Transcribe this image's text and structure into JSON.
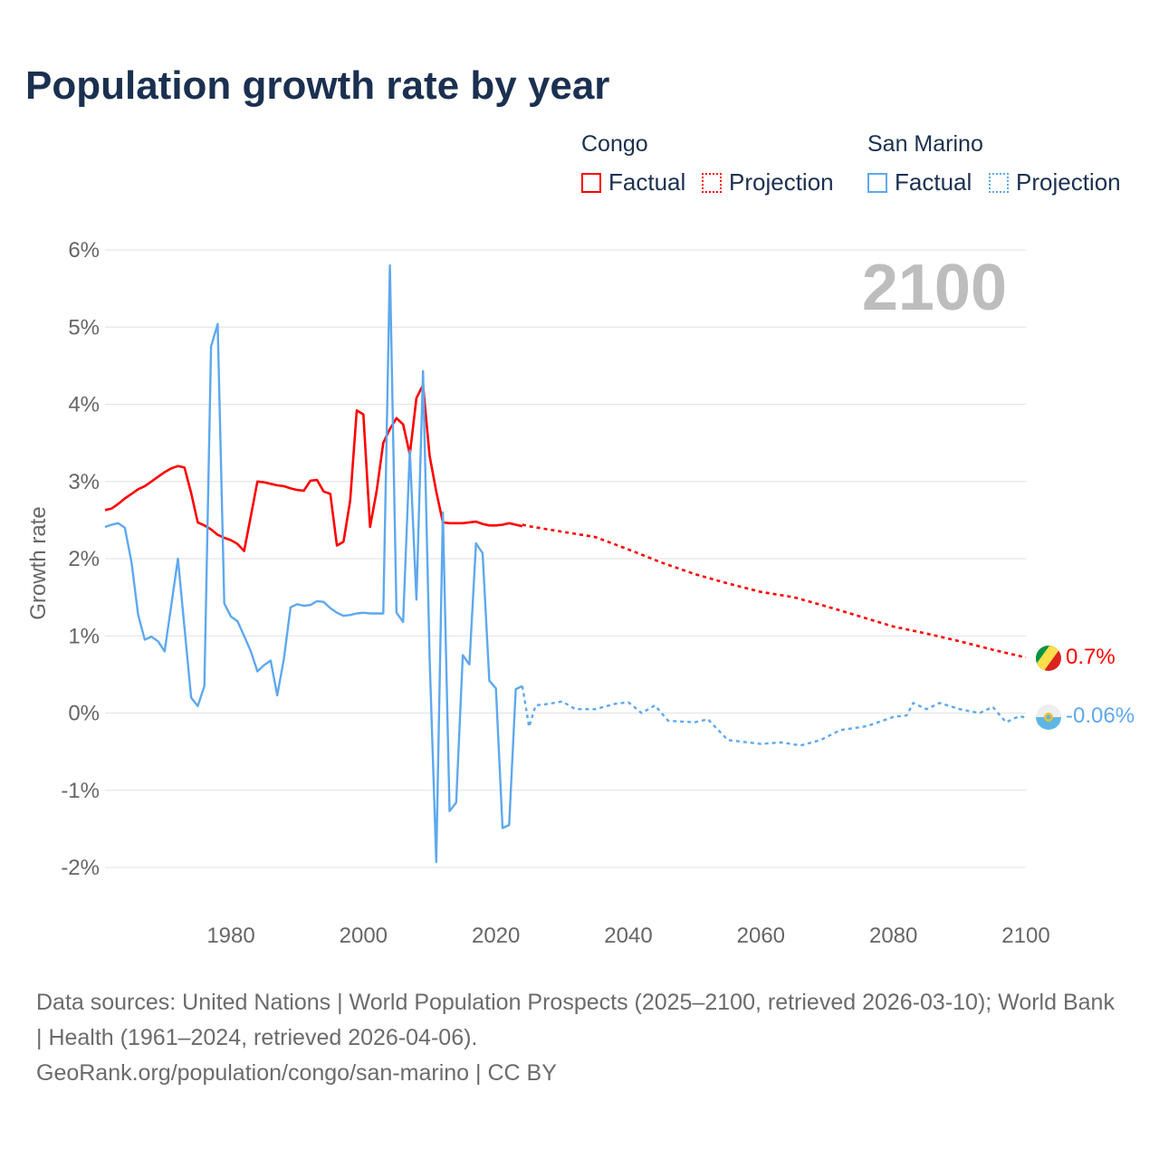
{
  "title": "Population growth rate by year",
  "legend": {
    "groups": [
      {
        "name": "Congo",
        "color": "#ff0000",
        "items": [
          "Factual",
          "Projection"
        ]
      },
      {
        "name": "San Marino",
        "color": "#5ea8ee",
        "items": [
          "Factual",
          "Projection"
        ]
      }
    ]
  },
  "chart_data": {
    "type": "line",
    "title": "Population growth rate by year",
    "ylabel": "Growth rate",
    "xlabel": "",
    "xlim": [
      1961,
      2100
    ],
    "ylim": [
      -2,
      6
    ],
    "xticks": [
      1980,
      2000,
      2020,
      2040,
      2060,
      2080,
      2100
    ],
    "yticks": [
      -2,
      -1,
      0,
      1,
      2,
      3,
      4,
      5,
      6
    ],
    "ytick_labels": [
      "-2%",
      "-1%",
      "0%",
      "1%",
      "2%",
      "3%",
      "4%",
      "5%",
      "6%"
    ],
    "grid": true,
    "year_label": "2100",
    "series": [
      {
        "name": "Congo",
        "kind": "Factual",
        "color": "#ff0000",
        "x": [
          1961,
          1962,
          1963,
          1964,
          1965,
          1966,
          1967,
          1968,
          1969,
          1970,
          1971,
          1972,
          1973,
          1974,
          1975,
          1976,
          1977,
          1978,
          1979,
          1980,
          1981,
          1982,
          1983,
          1984,
          1985,
          1986,
          1987,
          1988,
          1989,
          1990,
          1991,
          1992,
          1993,
          1994,
          1995,
          1996,
          1997,
          1998,
          1999,
          2000,
          2001,
          2002,
          2003,
          2004,
          2005,
          2006,
          2007,
          2008,
          2009,
          2010,
          2011,
          2012,
          2013,
          2014,
          2015,
          2016,
          2017,
          2018,
          2019,
          2020,
          2021,
          2022,
          2023,
          2024
        ],
        "y": [
          2.63,
          2.65,
          2.71,
          2.78,
          2.84,
          2.9,
          2.94,
          3.0,
          3.06,
          3.12,
          3.17,
          3.2,
          3.18,
          2.85,
          2.47,
          2.43,
          2.38,
          2.31,
          2.27,
          2.24,
          2.19,
          2.1,
          2.55,
          3.0,
          2.99,
          2.97,
          2.95,
          2.94,
          2.91,
          2.89,
          2.88,
          3.01,
          3.02,
          2.87,
          2.84,
          2.17,
          2.22,
          2.75,
          3.92,
          3.87,
          2.41,
          2.88,
          3.5,
          3.68,
          3.82,
          3.74,
          3.35,
          4.08,
          4.25,
          3.33,
          2.87,
          2.47,
          2.46,
          2.46,
          2.46,
          2.47,
          2.48,
          2.45,
          2.43,
          2.43,
          2.44,
          2.46,
          2.44,
          2.42
        ]
      },
      {
        "name": "Congo",
        "kind": "Projection",
        "color": "#ff0000",
        "x": [
          2024,
          2025,
          2030,
          2035,
          2040,
          2045,
          2050,
          2055,
          2060,
          2065,
          2070,
          2075,
          2080,
          2085,
          2090,
          2095,
          2100
        ],
        "y": [
          2.44,
          2.42,
          2.35,
          2.28,
          2.12,
          1.95,
          1.8,
          1.68,
          1.57,
          1.5,
          1.38,
          1.25,
          1.12,
          1.03,
          0.93,
          0.82,
          0.72
        ]
      },
      {
        "name": "San Marino",
        "kind": "Factual",
        "color": "#5ea8ee",
        "x": [
          1961,
          1962,
          1963,
          1964,
          1965,
          1966,
          1967,
          1968,
          1969,
          1970,
          1971,
          1972,
          1973,
          1974,
          1975,
          1976,
          1977,
          1978,
          1979,
          1980,
          1981,
          1982,
          1983,
          1984,
          1985,
          1986,
          1987,
          1988,
          1989,
          1990,
          1991,
          1992,
          1993,
          1994,
          1995,
          1996,
          1997,
          1998,
          1999,
          2000,
          2001,
          2002,
          2003,
          2004,
          2005,
          2006,
          2007,
          2008,
          2009,
          2010,
          2011,
          2012,
          2013,
          2014,
          2015,
          2016,
          2017,
          2018,
          2019,
          2020,
          2021,
          2022,
          2023,
          2024
        ],
        "y": [
          2.41,
          2.44,
          2.46,
          2.4,
          1.95,
          1.27,
          0.95,
          0.99,
          0.93,
          0.8,
          1.4,
          2.0,
          1.1,
          0.2,
          0.09,
          0.35,
          4.75,
          5.04,
          1.42,
          1.25,
          1.19,
          1.0,
          0.8,
          0.54,
          0.62,
          0.68,
          0.23,
          0.7,
          1.37,
          1.41,
          1.39,
          1.4,
          1.45,
          1.44,
          1.36,
          1.3,
          1.26,
          1.27,
          1.29,
          1.3,
          1.29,
          1.29,
          1.29,
          5.8,
          1.3,
          1.18,
          3.4,
          1.47,
          4.43,
          0.7,
          -1.93,
          2.6,
          -1.27,
          -1.16,
          0.75,
          0.63,
          2.2,
          2.07,
          0.42,
          0.32,
          -1.49,
          -1.45,
          0.31,
          0.35
        ]
      },
      {
        "name": "San Marino",
        "kind": "Projection",
        "color": "#5ea8ee",
        "x": [
          2024,
          2025,
          2026,
          2028,
          2030,
          2032,
          2035,
          2038,
          2040,
          2042,
          2044,
          2046,
          2050,
          2052,
          2055,
          2060,
          2063,
          2066,
          2069,
          2072,
          2076,
          2080,
          2082,
          2083,
          2085,
          2087,
          2090,
          2093,
          2095,
          2097,
          2099,
          2100
        ],
        "y": [
          0.35,
          -0.18,
          0.1,
          0.12,
          0.15,
          0.05,
          0.05,
          0.12,
          0.14,
          0.0,
          0.1,
          -0.1,
          -0.12,
          -0.08,
          -0.35,
          -0.4,
          -0.38,
          -0.42,
          -0.35,
          -0.22,
          -0.17,
          -0.05,
          -0.03,
          0.13,
          0.05,
          0.13,
          0.05,
          0.0,
          0.08,
          -0.12,
          -0.04,
          -0.06
        ]
      }
    ],
    "end_labels": [
      {
        "name": "Congo",
        "text": "0.7%",
        "value": 0.72,
        "color": "#ff0000"
      },
      {
        "name": "San Marino",
        "text": "-0.06%",
        "value": -0.06,
        "color": "#5ea8ee"
      }
    ]
  },
  "footer": {
    "sources": "Data sources: United Nations | World Population Prospects (2025–2100, retrieved 2026-03-10); World Bank | Health (1961–2024, retrieved 2026-04-06).",
    "link": "GeoRank.org/population/congo/san-marino | CC BY"
  }
}
